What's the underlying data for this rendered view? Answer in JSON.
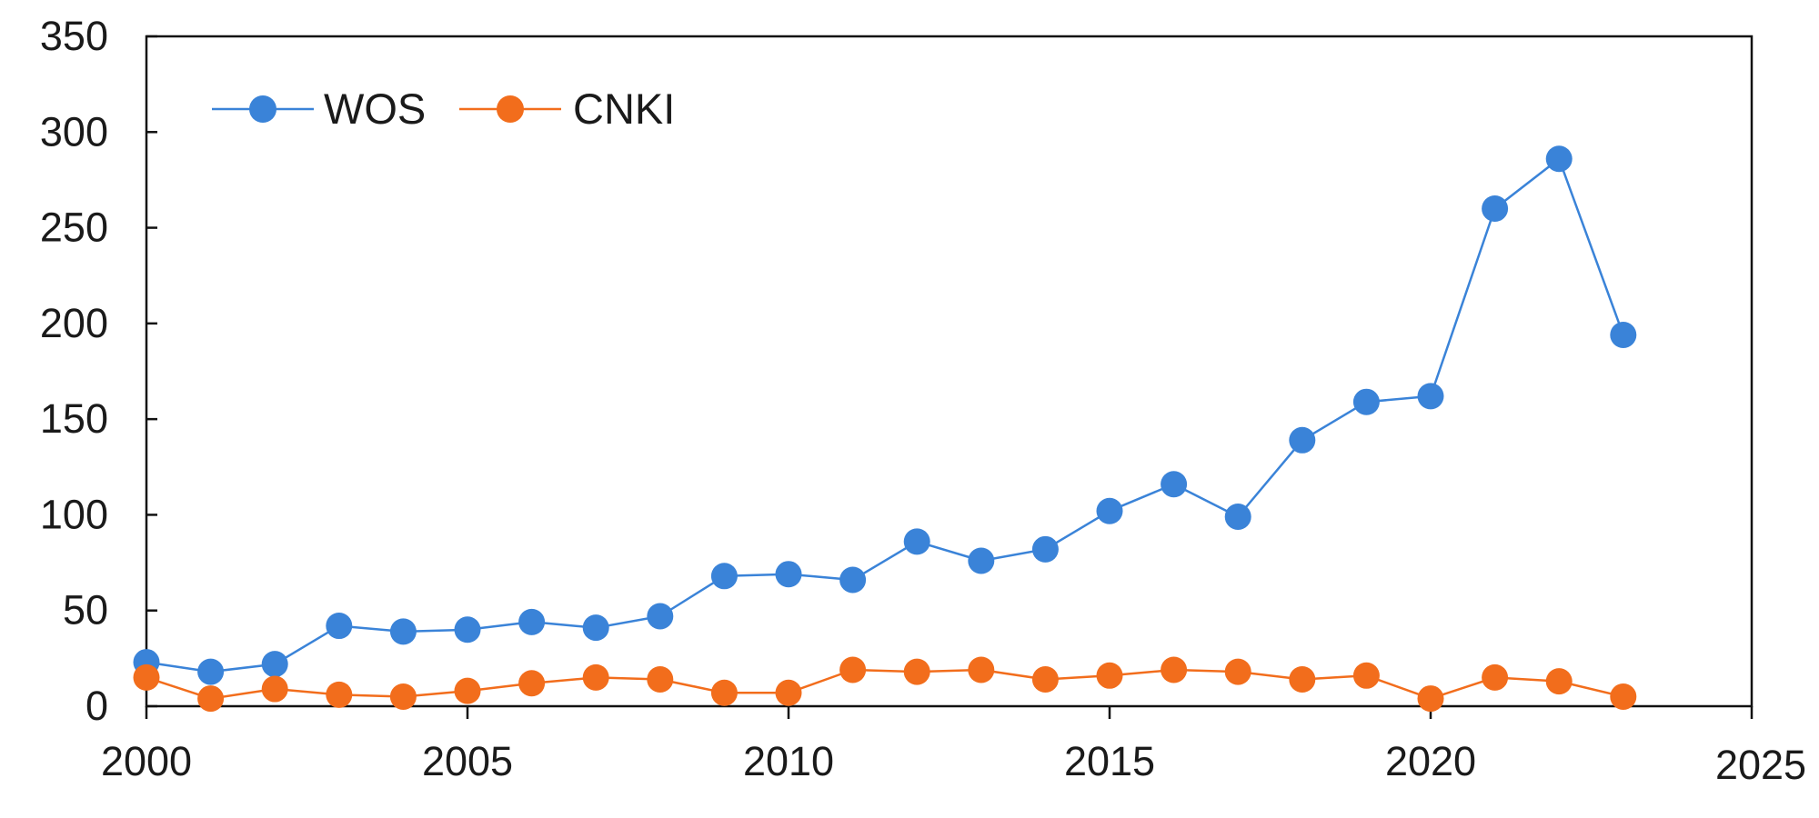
{
  "chart_data": {
    "type": "line",
    "title": "",
    "xlabel": "",
    "ylabel": "",
    "xlim": [
      2000,
      2025
    ],
    "ylim": [
      0,
      350
    ],
    "x_ticks": [
      2000,
      2005,
      2010,
      2015,
      2020,
      2025
    ],
    "y_ticks": [
      0,
      50,
      100,
      150,
      200,
      250,
      300,
      350
    ],
    "x_tick_labels": [
      "2000",
      "2005",
      "2010",
      "2015",
      "2020",
      "2025"
    ],
    "y_tick_labels": [
      "0",
      "50",
      "100",
      "150",
      "200",
      "250",
      "300",
      "350"
    ],
    "grid": false,
    "legend_position": "top-left",
    "x": [
      2000,
      2001,
      2002,
      2003,
      2004,
      2005,
      2006,
      2007,
      2008,
      2009,
      2010,
      2011,
      2012,
      2013,
      2014,
      2015,
      2016,
      2017,
      2018,
      2019,
      2020,
      2021,
      2022,
      2023
    ],
    "series": [
      {
        "name": "WOS",
        "color": "#3a83d8",
        "values": [
          23,
          18,
          22,
          42,
          39,
          40,
          44,
          41,
          47,
          68,
          69,
          66,
          86,
          76,
          82,
          102,
          116,
          99,
          139,
          159,
          162,
          260,
          286,
          194
        ]
      },
      {
        "name": "CNKI",
        "color": "#f26d1c",
        "values": [
          15,
          4,
          9,
          6,
          5,
          8,
          12,
          15,
          14,
          7,
          7,
          19,
          18,
          19,
          14,
          16,
          19,
          18,
          14,
          16,
          4,
          15,
          13,
          5
        ]
      }
    ]
  }
}
